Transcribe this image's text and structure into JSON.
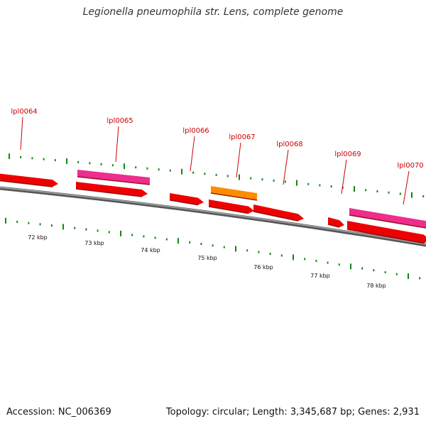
{
  "title": "Legionella pneumophila str. Lens, complete genome",
  "footer": {
    "accession": "Accession: NC_006369",
    "summary": "Topology: circular; Length: 3,345,687 bp; Genes: 2,931"
  },
  "colors": {
    "cds_forward": "#ee0000",
    "cds_reverse": "#ee0000",
    "gene_pink": "#ee2d8c",
    "gene_orange": "#ff8c00",
    "backbone": "#777777",
    "tick": "#118811",
    "label": "#cc0000"
  },
  "scale_labels": [
    "72 kbp",
    "73 kbp",
    "74 kbp",
    "75 kbp",
    "76 kbp",
    "77 kbp",
    "78 kbp"
  ],
  "gene_labels": [
    "lpl0064",
    "lpl0065",
    "lpl0066",
    "lpl0067",
    "lpl0068",
    "lpl0069",
    "lpl0070"
  ],
  "genes": [
    {
      "name": "",
      "strand": "reverse-outer",
      "color": "red"
    },
    {
      "name": "lpl0065",
      "strand": "forward",
      "color": "pink"
    },
    {
      "name": "lpl0065",
      "strand": "forward",
      "color": "red"
    },
    {
      "name": "lpl0066",
      "strand": "forward",
      "color": "red"
    },
    {
      "name": "lpl0067",
      "strand": "forward",
      "color": "orange"
    },
    {
      "name": "lpl0067",
      "strand": "forward",
      "color": "red"
    },
    {
      "name": "lpl0068",
      "strand": "forward",
      "color": "red"
    },
    {
      "name": "lpl0069",
      "strand": "forward",
      "color": "red"
    },
    {
      "name": "lpl0070",
      "strand": "forward",
      "color": "pink"
    },
    {
      "name": "lpl0070",
      "strand": "forward",
      "color": "red"
    }
  ]
}
